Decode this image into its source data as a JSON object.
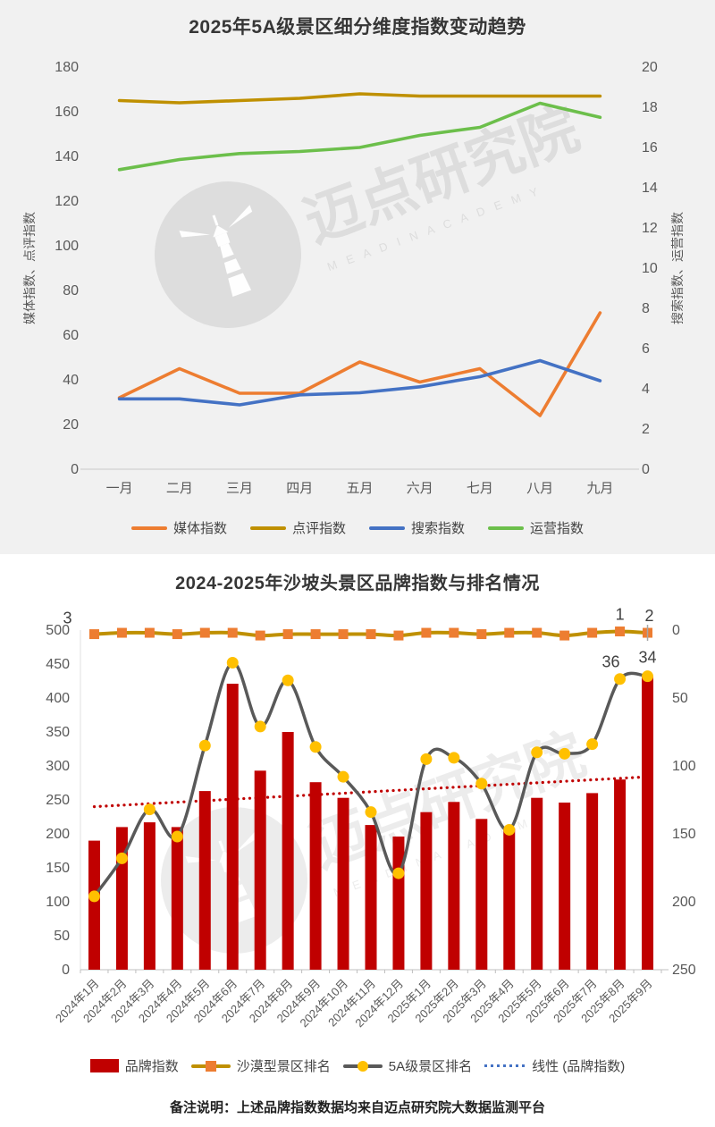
{
  "page": {
    "note": "备注说明：上述品牌指数数据均来自迈点研究院大数据监测平台"
  },
  "watermark": {
    "cn": "迈点研究院",
    "en": "M E A D I N   A C A D E M Y"
  },
  "chart_data": [
    {
      "type": "line",
      "title": "2025年5A级景区细分维度指数变动趋势",
      "categories": [
        "一月",
        "二月",
        "三月",
        "四月",
        "五月",
        "六月",
        "七月",
        "八月",
        "九月"
      ],
      "left_axis": {
        "label": "媒体指数、点评指数",
        "min": 0,
        "max": 180,
        "ticks": [
          "180",
          "160",
          "140",
          "120",
          "100",
          "80",
          "60",
          "40",
          "20",
          "0"
        ]
      },
      "right_axis": {
        "label": "搜索指数、运营指数",
        "min": 0,
        "max": 20,
        "ticks": [
          "20",
          "18",
          "16",
          "14",
          "12",
          "10",
          "8",
          "6",
          "4",
          "2",
          "0"
        ]
      },
      "grid": false,
      "legend_position": "bottom",
      "series": [
        {
          "name": "媒体指数",
          "axis": "left",
          "color": "#ED7D31",
          "values": [
            32,
            45,
            34,
            34,
            48,
            39,
            45,
            24,
            70
          ]
        },
        {
          "name": "点评指数",
          "axis": "left",
          "color": "#BF9000",
          "values": [
            165,
            164,
            165,
            166,
            168,
            167,
            167,
            167,
            167
          ]
        },
        {
          "name": "搜索指数",
          "axis": "right",
          "color": "#4472C4",
          "values": [
            3.5,
            3.5,
            3.2,
            3.7,
            3.8,
            4.1,
            4.6,
            5.4,
            4.4
          ]
        },
        {
          "name": "运营指数",
          "axis": "right",
          "color": "#6CBF4B",
          "values": [
            14.9,
            15.4,
            15.7,
            15.8,
            16.0,
            16.6,
            17.0,
            18.2,
            17.5
          ]
        }
      ]
    },
    {
      "type": "combo",
      "title": "2024-2025年沙坡头景区品牌指数与排名情况",
      "categories": [
        "2024年1月",
        "2024年2月",
        "2024年3月",
        "2024年4月",
        "2024年5月",
        "2024年6月",
        "2024年7月",
        "2024年8月",
        "2024年9月",
        "2024年10月",
        "2024年11月",
        "2024年12月",
        "2025年1月",
        "2025年2月",
        "2025年3月",
        "2025年4月",
        "2025年5月",
        "2025年6月",
        "2025年7月",
        "2025年8月",
        "2025年9月"
      ],
      "left_axis": {
        "min": 0,
        "max": 500,
        "ticks": [
          "500",
          "450",
          "400",
          "350",
          "300",
          "250",
          "200",
          "150",
          "100",
          "50",
          "0"
        ]
      },
      "right_axis": {
        "min": 0,
        "max": 250,
        "inverted": true,
        "ticks": [
          "0",
          "50",
          "100",
          "150",
          "200",
          "250"
        ]
      },
      "grid": false,
      "legend_position": "bottom",
      "series": [
        {
          "name": "品牌指数",
          "type": "bar",
          "axis": "left",
          "color": "#C00000",
          "values": [
            190,
            210,
            217,
            210,
            263,
            421,
            293,
            350,
            276,
            253,
            213,
            196,
            232,
            247,
            222,
            208,
            253,
            246,
            260,
            280,
            432
          ]
        },
        {
          "name": "沙漠型景区排名",
          "type": "line",
          "axis": "right",
          "color": "#BF9000",
          "marker": "square",
          "marker_color": "#ED7D31",
          "values": [
            3,
            2,
            2,
            3,
            2,
            2,
            4,
            3,
            3,
            3,
            3,
            4,
            2,
            2,
            3,
            2,
            2,
            4,
            2,
            1,
            2
          ],
          "labels": [
            {
              "i": 0,
              "text": "3",
              "dx": -30,
              "dy": -12
            },
            {
              "i": 19,
              "text": "1",
              "dx": 0,
              "dy": -13
            },
            {
              "i": 20,
              "text": "2",
              "dx": 2,
              "dy": -13
            }
          ]
        },
        {
          "name": "5A级景区排名",
          "type": "line",
          "axis": "right",
          "color": "#595959",
          "marker": "circle",
          "marker_color": "#FFC000",
          "values": [
            196,
            168,
            132,
            152,
            85,
            24,
            71,
            37,
            86,
            108,
            134,
            179,
            95,
            94,
            113,
            147,
            90,
            91,
            84,
            36,
            34
          ],
          "labels": [
            {
              "i": 19,
              "text": "36",
              "dx": -10,
              "dy": -13
            },
            {
              "i": 20,
              "text": "34",
              "dx": 0,
              "dy": -15
            }
          ]
        },
        {
          "name": "线性 (品牌指数)",
          "type": "trend",
          "axis": "left",
          "color": "#C00000",
          "legend_color": "#4472C4",
          "style": "dotted",
          "start": 240,
          "end": 284
        }
      ]
    }
  ]
}
